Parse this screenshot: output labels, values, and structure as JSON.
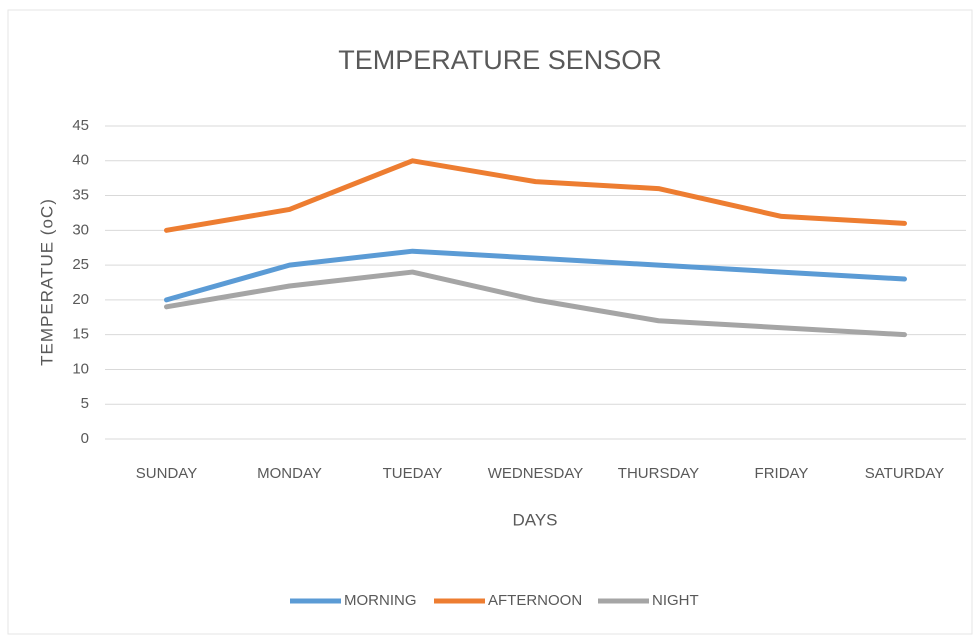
{
  "chart_data": {
    "type": "line",
    "title": "TEMPERATURE SENSOR",
    "x_label": "DAYS",
    "y_label": "TEMPERATUE (oC)",
    "categories": [
      "SUNDAY",
      "MONDAY",
      "TUEDAY",
      "WEDNESDAY",
      "THURSDAY",
      "FRIDAY",
      "SATURDAY"
    ],
    "series": [
      {
        "name": "MORNING",
        "color": "#5b9bd5",
        "values": [
          20,
          25,
          27,
          26,
          25,
          24,
          23
        ]
      },
      {
        "name": "AFTERNOON",
        "color": "#ed7d31",
        "values": [
          30,
          33,
          40,
          37,
          36,
          32,
          31
        ]
      },
      {
        "name": "NIGHT",
        "color": "#a5a5a5",
        "values": [
          19,
          22,
          24,
          20,
          17,
          16,
          15
        ]
      }
    ],
    "ylim": [
      0,
      45
    ],
    "yticks": [
      0,
      5,
      10,
      15,
      20,
      25,
      30,
      35,
      40,
      45
    ],
    "grid": true,
    "legend": "bottom"
  }
}
